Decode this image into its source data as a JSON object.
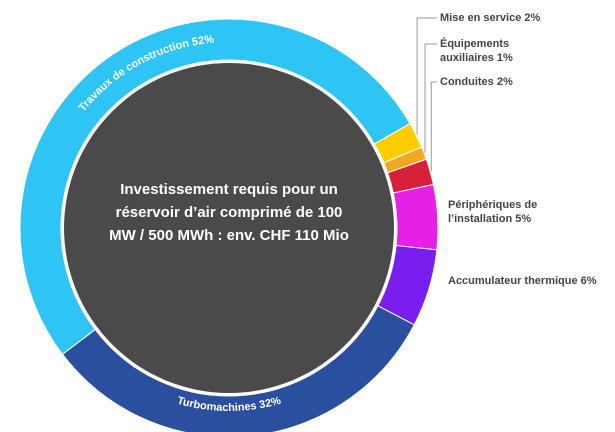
{
  "chart_data": {
    "type": "donut",
    "center_label": "Investissement requis pour un réservoir d’air comprimé de 100 MW / 500 MWh : env. CHF 110 Mio",
    "categories": [
      "Travaux de construction",
      "Mise en service",
      "Équipements auxiliaires",
      "Conduites",
      "Périphériques de l’installation",
      "Accumulateur thermique",
      "Turbomachines"
    ],
    "values": [
      52,
      2,
      1,
      2,
      5,
      6,
      32
    ],
    "value_labels": [
      "52%",
      "2%",
      "1%",
      "2%",
      "5%",
      "6%",
      "32%"
    ],
    "colors": [
      "#2ec5f5",
      "#ffcc00",
      "#f5a623",
      "#d9203b",
      "#e620e6",
      "#7a1ef0",
      "#2a4f9e"
    ]
  }
}
